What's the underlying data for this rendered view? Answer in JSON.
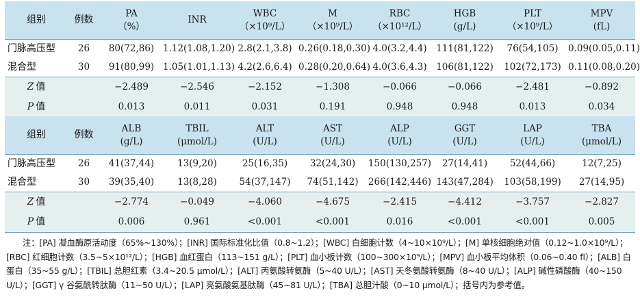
{
  "table1": {
    "headers": [
      {
        "line1": "组别",
        "line2": ""
      },
      {
        "line1": "例数",
        "line2": ""
      },
      {
        "line1": "PA",
        "line2": "（%）"
      },
      {
        "line1": "INR",
        "line2": ""
      },
      {
        "line1": "WBC",
        "line2": "（×10⁹/L）"
      },
      {
        "line1": "M",
        "line2": "（×10⁹/L）"
      },
      {
        "line1": "RBC",
        "line2": "（×10¹²/L）"
      },
      {
        "line1": "HGB",
        "line2": "(g/L)"
      },
      {
        "line1": "PLT",
        "line2": "（×10⁹/L）"
      },
      {
        "line1": "MPV",
        "line2": "(fL)"
      }
    ],
    "rows": [
      {
        "name": "门脉高压型",
        "n": "26",
        "values": [
          "80(72,86)",
          "1.12(1.08,1.20)",
          "2.8(2.1,3.8)",
          "0.26(0.18,0.30)",
          "4.0(3.2,4.4)",
          "111(81,122)",
          "76(54,105)",
          "0.09(0.05,0.11)"
        ]
      },
      {
        "name": "混合型",
        "n": "30",
        "values": [
          "91(80,99)",
          "1.05(1.01,1.13)",
          "4.2(2.6,6.4)",
          "0.28(0.20,0.64)",
          "4.0(3.6,4.3)",
          "106(81,122)",
          "102(72,173)",
          "0.11(0.08,0.20)"
        ]
      }
    ],
    "z": {
      "symbol": "Z",
      "label": "值",
      "values": [
        "−2.489",
        "−2.546",
        "−2.152",
        "−1.308",
        "−0.066",
        "−0.066",
        "−2.481",
        "−0.892"
      ]
    },
    "p": {
      "symbol": "P",
      "label": "值",
      "values": [
        "0.013",
        "0.011",
        "0.031",
        "0.191",
        "0.948",
        "0.948",
        "0.013",
        "0.034"
      ]
    }
  },
  "table2": {
    "headers": [
      {
        "line1": "组别",
        "line2": ""
      },
      {
        "line1": "例数",
        "line2": ""
      },
      {
        "line1": "ALB",
        "line2": "(g/L)"
      },
      {
        "line1": "TBIL",
        "line2": "(μmol/L)"
      },
      {
        "line1": "ALT",
        "line2": "(U/L)"
      },
      {
        "line1": "AST",
        "line2": "(U/L)"
      },
      {
        "line1": "ALP",
        "line2": "(U/L)"
      },
      {
        "line1": "GGT",
        "line2": "(U/L)"
      },
      {
        "line1": "LAP",
        "line2": "(U/L)"
      },
      {
        "line1": "TBA",
        "line2": "(μmol/L)"
      }
    ],
    "rows": [
      {
        "name": "门脉高压型",
        "n": "26",
        "values": [
          "41(37,44)",
          "13(9,20)",
          "25(16,35)",
          "32(24,30)",
          "150(130,257)",
          "27(14,41)",
          "52(44,66)",
          "12(7,25)"
        ]
      },
      {
        "name": "混合型",
        "n": "30",
        "values": [
          "39(35,40)",
          "13(8,28)",
          "54(37,147)",
          "74(51,142)",
          "266(142,446)",
          "143(47,284)",
          "103(58,199)",
          "27(14,95)"
        ]
      }
    ],
    "z": {
      "symbol": "Z",
      "label": "值",
      "values": [
        "−2.774",
        "−0.049",
        "−4.060",
        "−4.675",
        "−2.415",
        "−4.412",
        "−3.757",
        "−2.827"
      ]
    },
    "p": {
      "symbol": "P",
      "label": "值",
      "values": [
        "0.006",
        "0.961",
        "<0.001",
        "<0.001",
        "0.016",
        "<0.001",
        "<0.001",
        "0.005"
      ]
    }
  },
  "note": "注：[PA] 凝血酶原活动度（65%~130%）；[INR] 国际标准化比值（0.8~1.2）；[WBC] 白细胞计数（4~10×10⁹/L）；[M] 单核细胞绝对值（0.12~1.0×10⁹/L）；[RBC] 红细胞计数（3.5~5×10¹²/L）；[HGB] 血红蛋白（113~151 g/L）；[PLT] 血小板计数（100~300×10⁹/L）；[MPV] 血小板平均体积（0.06~0.40 fl）；[ALB] 白蛋白（35~55 g/L）；[TBIL] 总胆红素（3.4~20.5 μmol/L）；[ALT] 丙氨酸转氨酶（5~40 U/L）；[AST] 天冬氨酸转氨酶（8~40 U/L）；[ALP] 碱性磷酸酶（40~150 U/L）；[GGT] γ 谷氨酰转肽酶（11~50 U/L）；[LAP] 亮氨酸氨基肽酶（45~81 U/L）；[TBA] 总胆汁酸（0~10 μmol/L）；括号内为参考值。"
}
